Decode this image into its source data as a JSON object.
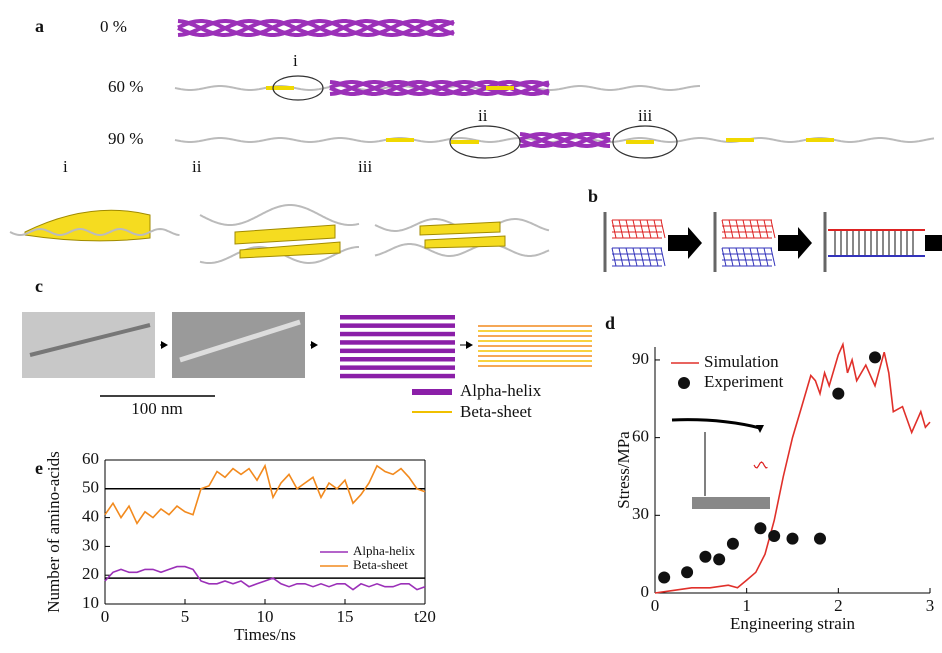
{
  "panel_a": {
    "label": "a",
    "strains": [
      "0 %",
      "60 %",
      "90 %"
    ],
    "markers": [
      "i",
      "ii",
      "iii"
    ],
    "zoom_labels": [
      "i",
      "ii",
      "iii"
    ]
  },
  "panel_b": {
    "label": "b"
  },
  "panel_c": {
    "label": "c",
    "scale_bar": "100 nm",
    "legend": [
      "Alpha-helix",
      "Beta-sheet"
    ]
  },
  "chart_data": [
    {
      "type": "line",
      "panel": "d",
      "x_label": "Engineering strain",
      "y_label": "Stress/MPa",
      "xlim": [
        0,
        3
      ],
      "ylim": [
        0,
        95
      ],
      "xticks": [
        0,
        1,
        2,
        3
      ],
      "yticks": [
        0,
        30,
        60,
        90
      ],
      "frame": false,
      "legend": "upper left",
      "series": [
        {
          "name": "Simulation",
          "color": "#e0302a",
          "style": "line",
          "x": [
            0,
            0.2,
            0.4,
            0.6,
            0.8,
            0.9,
            1.0,
            1.1,
            1.2,
            1.3,
            1.4,
            1.5,
            1.6,
            1.7,
            1.75,
            1.8,
            1.85,
            1.9,
            2.0,
            2.05,
            2.1,
            2.15,
            2.2,
            2.3,
            2.4,
            2.5,
            2.55,
            2.6,
            2.7,
            2.8,
            2.9,
            2.95,
            3.0
          ],
          "values": [
            0,
            1,
            2,
            2,
            3,
            2,
            5,
            8,
            15,
            28,
            45,
            60,
            72,
            84,
            82,
            77,
            85,
            80,
            92,
            96,
            85,
            90,
            82,
            88,
            80,
            93,
            85,
            70,
            72,
            62,
            70,
            64,
            66
          ]
        },
        {
          "name": "Experiment",
          "color": "#111111",
          "style": "scatter",
          "x": [
            0.1,
            0.35,
            0.55,
            0.7,
            0.85,
            1.15,
            1.3,
            1.5,
            1.8,
            2.0,
            2.4
          ],
          "values": [
            6,
            8,
            14,
            13,
            19,
            25,
            22,
            21,
            21,
            77,
            91
          ]
        }
      ]
    },
    {
      "type": "line",
      "panel": "e",
      "x_label": "Times/ns",
      "y_label": "Number of amino-acids",
      "xlim": [
        0,
        20
      ],
      "ylim": [
        10,
        60
      ],
      "xticks": [
        0,
        5,
        10,
        15,
        {
          "value": 20,
          "label": "t20"
        }
      ],
      "yticks": [
        10,
        20,
        30,
        40,
        50,
        60
      ],
      "frame": true,
      "legend": "lower right",
      "reference_lines": [
        50,
        19
      ],
      "series": [
        {
          "name": "Alpha-helix",
          "color": "#9b30b8",
          "style": "line",
          "x": [
            0,
            0.5,
            1,
            1.5,
            2,
            2.5,
            3,
            3.5,
            4,
            4.5,
            5,
            5.5,
            6,
            6.5,
            7,
            7.5,
            8,
            8.5,
            9,
            9.5,
            10,
            10.5,
            11,
            11.5,
            12,
            12.5,
            13,
            13.5,
            14,
            14.5,
            15,
            15.5,
            16,
            16.5,
            17,
            17.5,
            18,
            18.5,
            19,
            19.5,
            20
          ],
          "values": [
            18,
            21,
            22,
            21,
            21,
            22,
            22,
            21,
            22,
            23,
            23,
            22,
            18,
            17,
            17,
            18,
            17,
            18,
            16,
            17,
            18,
            19,
            17,
            16,
            17,
            17,
            16,
            17,
            16,
            17,
            17,
            15,
            17,
            16,
            17,
            16,
            16,
            17,
            17,
            15,
            16
          ]
        },
        {
          "name": "Beta-sheet",
          "color": "#f28a1e",
          "style": "line",
          "x": [
            0,
            0.5,
            1,
            1.5,
            2,
            2.5,
            3,
            3.5,
            4,
            4.5,
            5,
            5.5,
            6,
            6.5,
            7,
            7.5,
            8,
            8.5,
            9,
            9.5,
            10,
            10.5,
            11,
            11.5,
            12,
            12.5,
            13,
            13.5,
            14,
            14.5,
            15,
            15.5,
            16,
            16.5,
            17,
            17.5,
            18,
            18.5,
            19,
            19.5,
            20
          ],
          "values": [
            41,
            45,
            40,
            44,
            38,
            42,
            40,
            43,
            41,
            44,
            42,
            41,
            50,
            51,
            56,
            54,
            57,
            55,
            57,
            53,
            58,
            47,
            52,
            55,
            50,
            52,
            54,
            47,
            52,
            50,
            53,
            45,
            48,
            52,
            58,
            56,
            55,
            57,
            54,
            50,
            49
          ]
        }
      ]
    }
  ]
}
